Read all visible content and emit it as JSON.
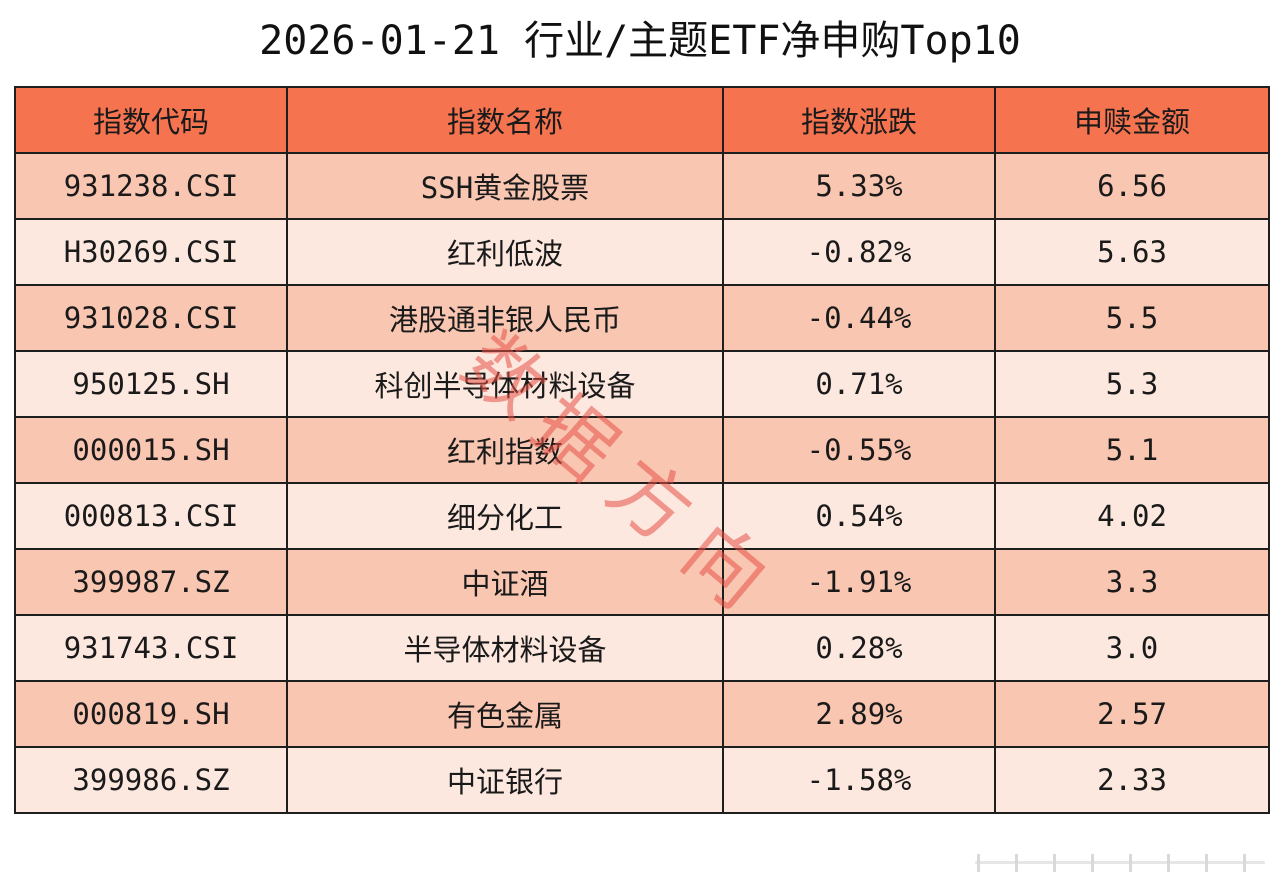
{
  "title": "2026-01-21 行业/主题ETF净申购Top10",
  "table": {
    "headers": [
      "指数代码",
      "指数名称",
      "指数涨跌",
      "申赎金额"
    ],
    "rows": [
      [
        "931238.CSI",
        "SSH黄金股票",
        "5.33%",
        "6.56"
      ],
      [
        "H30269.CSI",
        "红利低波",
        "-0.82%",
        "5.63"
      ],
      [
        "931028.CSI",
        "港股通非银人民币",
        "-0.44%",
        "5.5"
      ],
      [
        "950125.SH",
        "科创半导体材料设备",
        "0.71%",
        "5.3"
      ],
      [
        "000015.SH",
        "红利指数",
        "-0.55%",
        "5.1"
      ],
      [
        "000813.CSI",
        "细分化工",
        "0.54%",
        "4.02"
      ],
      [
        "399987.SZ",
        "中证酒",
        "-1.91%",
        "3.3"
      ],
      [
        "931743.CSI",
        "半导体材料设备",
        "0.28%",
        "3.0"
      ],
      [
        "000819.SH",
        "有色金属",
        "2.89%",
        "2.57"
      ],
      [
        "399986.SZ",
        "中证银行",
        "-1.58%",
        "2.33"
      ]
    ]
  },
  "watermark": {
    "chars": [
      "数",
      "据",
      "方",
      "向"
    ],
    "color": "#e65046"
  },
  "colors": {
    "header_bg": "#f5734f",
    "row_odd_bg": "#f9c6b2",
    "row_even_bg": "#fde8df",
    "border": "#1e1e1e"
  }
}
